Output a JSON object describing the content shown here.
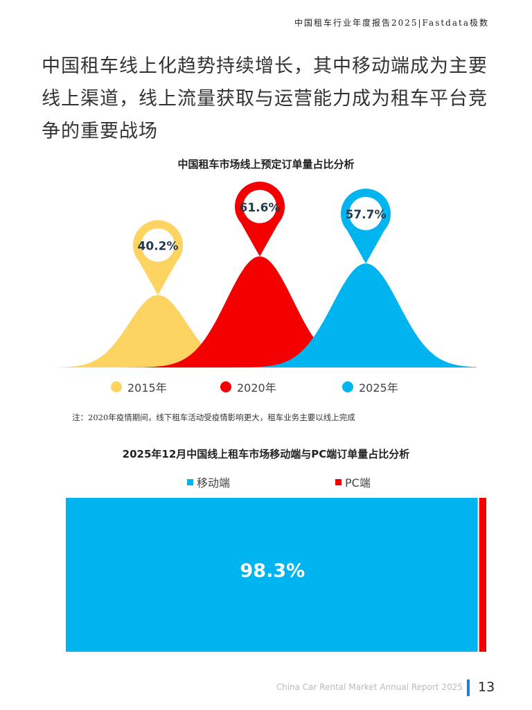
{
  "header": "中国租车行业年度报告2025|Fastdata极数",
  "headline": "中国租车线上化趋势持续增长，其中移动端成为主要线上渠道，线上流量获取与运营能力成为租车平台竞争的重要战场",
  "chart_data": [
    {
      "type": "area",
      "title": "中国租车市场线上预定订单量占比分析",
      "categories": [
        "2015年",
        "2020年",
        "2025年"
      ],
      "values": [
        40.2,
        61.6,
        57.7
      ],
      "labels": [
        "40.2%",
        "61.6%",
        "57.7%"
      ],
      "colors": [
        "#fdd462",
        "#f40000",
        "#00b4f0"
      ],
      "legend": "bottom"
    },
    {
      "type": "bar",
      "title": "2025年12月中国线上租车市场移动端与PC端订单量占比分析",
      "categories": [
        "移动端",
        "PC端"
      ],
      "values": [
        98.3,
        1.7
      ],
      "labels": [
        "98.3%",
        ""
      ],
      "colors": [
        "#00b4f0",
        "#f40000"
      ],
      "stacked": true,
      "legend": "top"
    }
  ],
  "note": "注：2020年疫情期间，线下租车活动受疫情影响更大，租车业务主要以线上完成",
  "footer": {
    "text": "China Car Rental Market Annual Report 2025",
    "page": "13"
  }
}
